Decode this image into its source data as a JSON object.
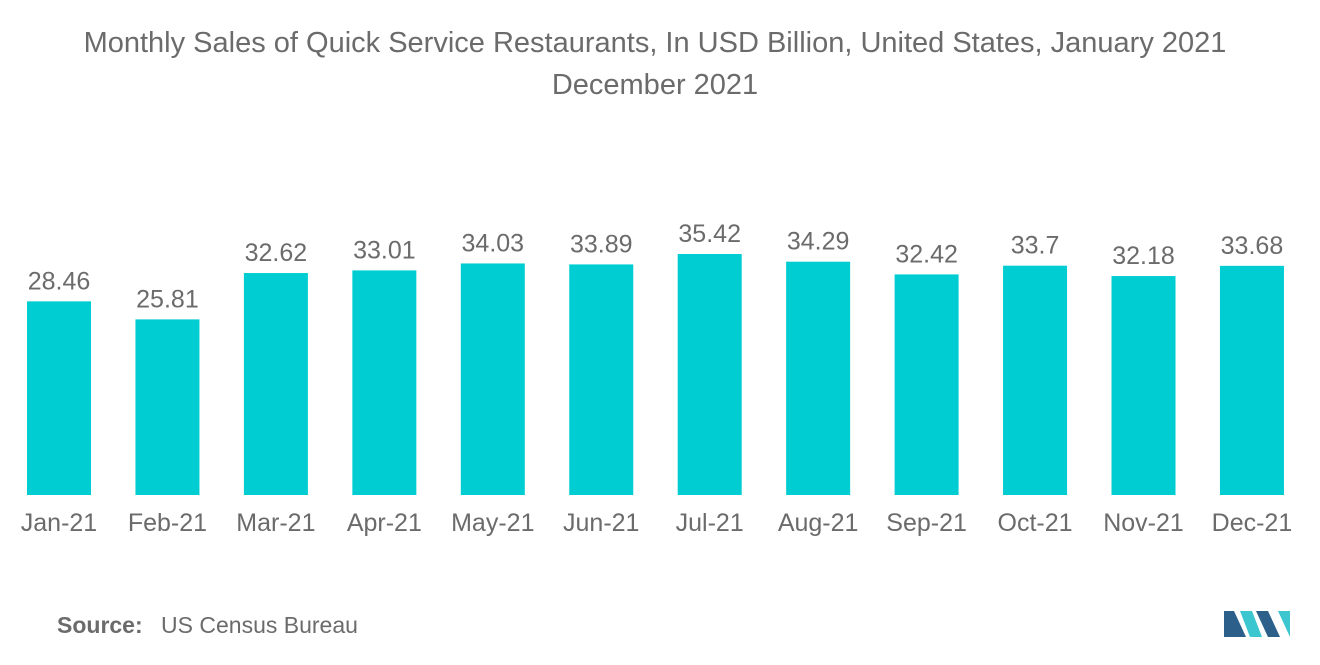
{
  "chart_data": {
    "type": "bar",
    "title_line1": "Monthly Sales of Quick Service Restaurants, In USD Billion, United States, January 2021",
    "title_line2": "December 2021",
    "categories": [
      "Jan-21",
      "Feb-21",
      "Mar-21",
      "Apr-21",
      "May-21",
      "Jun-21",
      "Jul-21",
      "Aug-21",
      "Sep-21",
      "Oct-21",
      "Nov-21",
      "Dec-21"
    ],
    "values": [
      28.46,
      25.81,
      32.62,
      33.01,
      34.03,
      33.89,
      35.42,
      34.29,
      32.42,
      33.7,
      32.18,
      33.68
    ],
    "value_labels": [
      "28.46",
      "25.81",
      "32.62",
      "33.01",
      "34.03",
      "33.89",
      "35.42",
      "34.29",
      "32.42",
      "33.7",
      "32.18",
      "33.68"
    ],
    "xlabel": "",
    "ylabel": "",
    "ylim": [
      0,
      35.42
    ],
    "grid": false,
    "legend": "none",
    "bar_color": "#00CDD2"
  },
  "source": {
    "label": "Source:",
    "text": "US Census Bureau"
  },
  "colors": {
    "text": "#6b6b6b",
    "logo_dark": "#2c5f8a",
    "logo_light": "#3cc6cf"
  }
}
